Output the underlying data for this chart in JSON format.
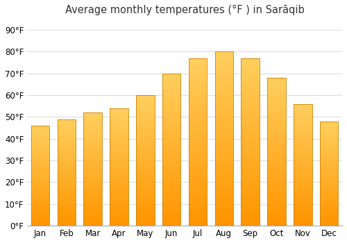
{
  "title": "Average monthly temperatures (°F ) in Sarāqib",
  "months": [
    "Jan",
    "Feb",
    "Mar",
    "Apr",
    "May",
    "Jun",
    "Jul",
    "Aug",
    "Sep",
    "Oct",
    "Nov",
    "Dec"
  ],
  "values": [
    46,
    49,
    52,
    54,
    60,
    70,
    77,
    80,
    77,
    68,
    56,
    48
  ],
  "bar_color_main": "#FFA520",
  "bar_color_top": "#FFD060",
  "bar_color_bottom": "#FF9500",
  "edge_color": "#CC8000",
  "ylabel_ticks": [
    0,
    10,
    20,
    30,
    40,
    50,
    60,
    70,
    80,
    90
  ],
  "ylabel_labels": [
    "0°F",
    "10°F",
    "20°F",
    "30°F",
    "40°F",
    "50°F",
    "60°F",
    "70°F",
    "80°F",
    "90°F"
  ],
  "ylim": [
    0,
    95
  ],
  "background_color": "#ffffff",
  "grid_color": "#dddddd",
  "title_fontsize": 10.5,
  "tick_fontsize": 8.5,
  "bar_width": 0.7
}
